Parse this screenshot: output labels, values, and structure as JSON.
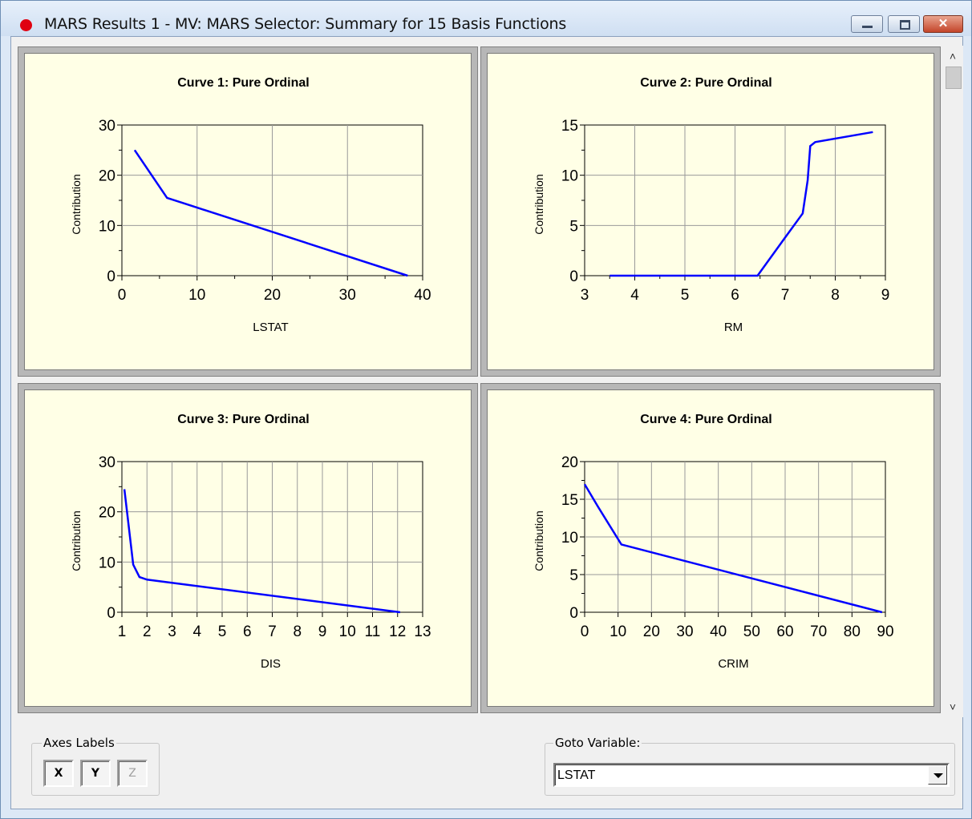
{
  "window": {
    "title": "MARS Results 1 - MV: MARS Selector: Summary for 15 Basis Functions",
    "app_icon": "red-dot-icon",
    "controls": [
      "minimize-icon",
      "maximize-icon",
      "close-icon"
    ],
    "close_glyph": "✕"
  },
  "scrollbar": {
    "up_glyph": "˄",
    "down_glyph": "˅"
  },
  "charts": [
    {
      "id": "curve-1",
      "title": "Curve 1: Pure Ordinal",
      "xlabel": "LSTAT",
      "ylabel": "Contribution",
      "xticks": [
        "0",
        "10",
        "20",
        "30",
        "40"
      ],
      "yticks": [
        "0",
        "10",
        "20",
        "30"
      ]
    },
    {
      "id": "curve-2",
      "title": "Curve 2: Pure Ordinal",
      "xlabel": "RM",
      "ylabel": "Contribution",
      "xticks": [
        "3",
        "4",
        "5",
        "6",
        "7",
        "8",
        "9"
      ],
      "yticks": [
        "0",
        "5",
        "10",
        "15"
      ]
    },
    {
      "id": "curve-3",
      "title": "Curve 3: Pure Ordinal",
      "xlabel": "DIS",
      "ylabel": "Contribution",
      "xticks": [
        "1",
        "2",
        "3",
        "4",
        "5",
        "6",
        "7",
        "8",
        "9",
        "10",
        "11",
        "12",
        "13"
      ],
      "yticks": [
        "0",
        "10",
        "20",
        "30"
      ]
    },
    {
      "id": "curve-4",
      "title": "Curve 4: Pure Ordinal",
      "xlabel": "CRIM",
      "ylabel": "Contribution",
      "xticks": [
        "0",
        "10",
        "20",
        "30",
        "40",
        "50",
        "60",
        "70",
        "80",
        "90"
      ],
      "yticks": [
        "0",
        "5",
        "10",
        "15",
        "20"
      ]
    }
  ],
  "chart_data": [
    {
      "type": "line",
      "title": "Curve 1: Pure Ordinal",
      "xlabel": "LSTAT",
      "ylabel": "Contribution",
      "xlim": [
        0,
        40
      ],
      "ylim": [
        0,
        30
      ],
      "grid": true,
      "line_color": "#0000ff",
      "x": [
        1.7,
        6,
        38
      ],
      "y": [
        25,
        15.5,
        0
      ]
    },
    {
      "type": "line",
      "title": "Curve 2: Pure Ordinal",
      "xlabel": "RM",
      "ylabel": "Contribution",
      "xlim": [
        3,
        9
      ],
      "ylim": [
        0,
        15
      ],
      "grid": true,
      "line_color": "#0000ff",
      "x": [
        3.5,
        6.45,
        7.0,
        7.35,
        7.45,
        7.5,
        7.6,
        8.75
      ],
      "y": [
        0,
        0,
        3.8,
        6.2,
        9.5,
        12.9,
        13.3,
        14.3
      ]
    },
    {
      "type": "line",
      "title": "Curve 3: Pure Ordinal",
      "xlabel": "DIS",
      "ylabel": "Contribution",
      "xlim": [
        1,
        13
      ],
      "ylim": [
        0,
        30
      ],
      "grid": true,
      "line_color": "#0000ff",
      "x": [
        1.1,
        1.45,
        1.7,
        2.0,
        12.1
      ],
      "y": [
        24.5,
        9.5,
        7.0,
        6.5,
        0
      ]
    },
    {
      "type": "line",
      "title": "Curve 4: Pure Ordinal",
      "xlabel": "CRIM",
      "ylabel": "Contribution",
      "xlim": [
        0,
        90
      ],
      "ylim": [
        0,
        20
      ],
      "grid": true,
      "line_color": "#0000ff",
      "x": [
        0,
        4,
        11,
        89
      ],
      "y": [
        17,
        14,
        9,
        0
      ]
    }
  ],
  "axes_labels": {
    "label": "Axes Labels",
    "x": "X",
    "y": "Y",
    "z": "Z"
  },
  "goto_variable": {
    "label": "Goto Variable:",
    "value": "LSTAT",
    "arrow": "chevron-down-icon"
  }
}
